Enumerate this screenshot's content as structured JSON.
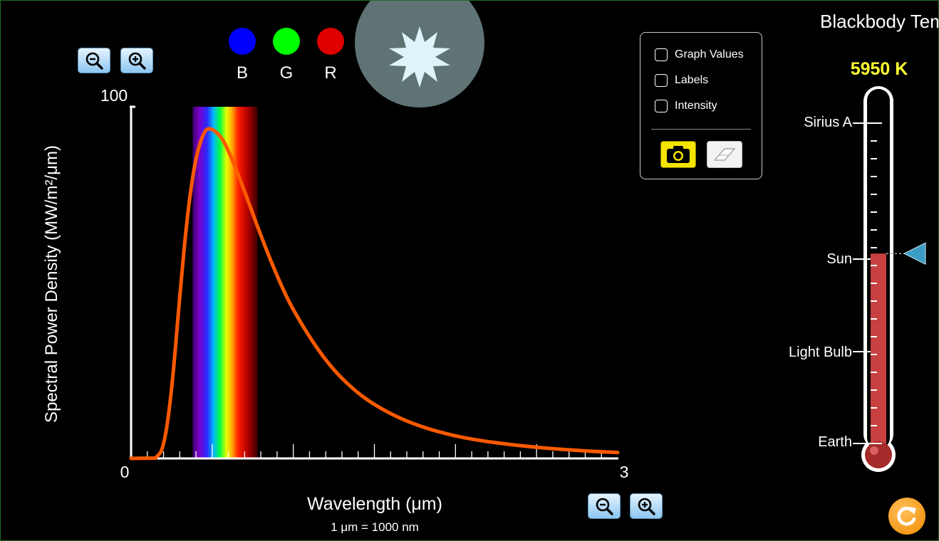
{
  "zoom": {
    "y_zoom_out_icon": "zoom-out-icon",
    "y_zoom_in_icon": "zoom-in-icon",
    "x_zoom_out_icon": "zoom-out-icon",
    "x_zoom_in_icon": "zoom-in-icon"
  },
  "rgb": [
    {
      "label": "B",
      "color": "#0000ff"
    },
    {
      "label": "G",
      "color": "#00ff00"
    },
    {
      "label": "R",
      "color": "#e00000"
    }
  ],
  "star": {
    "icon": "star-icon",
    "color": "#dcf4fa",
    "disc_color": "#5f7375"
  },
  "options": {
    "graph_values": {
      "label": "Graph Values",
      "checked": false
    },
    "labels": {
      "label": "Labels",
      "checked": false
    },
    "intensity": {
      "label": "Intensity",
      "checked": false
    },
    "camera_icon": "camera-icon",
    "eraser_icon": "eraser-icon"
  },
  "thermometer": {
    "title": "Blackbody Temperature",
    "value": "5950 K",
    "value_color": "#ffff33",
    "markers": [
      {
        "name": "Sirius A",
        "kelvin": 9940
      },
      {
        "name": "Sun",
        "kelvin": 5780
      },
      {
        "name": "Light Bulb",
        "kelvin": 3000
      },
      {
        "name": "Earth",
        "kelvin": 300
      }
    ],
    "fill_color": "#c84040",
    "indicator_color": "#3b9cc4"
  },
  "reset_icon": "reset-icon",
  "chart_data": {
    "type": "line",
    "xlabel": "Wavelength (μm)",
    "xnote": "1 μm  =  1000 nm",
    "ylabel": "Spectral Power Density (MW/m²/μm)",
    "x_tick_labels": [
      "0",
      "3"
    ],
    "y_tick_labels": [
      "100"
    ],
    "xlim": [
      0,
      3
    ],
    "ylim": [
      0,
      100
    ],
    "grid": false,
    "temperature_kelvin": 5950,
    "series": [
      {
        "color": "#ff5a00",
        "x": [
          0.15,
          0.2,
          0.25,
          0.3,
          0.35,
          0.4,
          0.45,
          0.487,
          0.55,
          0.6,
          0.7,
          0.8,
          0.9,
          1.0,
          1.2,
          1.4,
          1.6,
          1.8,
          2.0,
          2.2,
          2.5,
          2.8,
          3.0
        ],
        "y": [
          0.1,
          2.5,
          18.6,
          46.2,
          70.8,
          86.1,
          93.1,
          94.1,
          91.9,
          87.7,
          76.0,
          63.3,
          51.8,
          41.9,
          27.4,
          18.2,
          12.5,
          8.8,
          6.3,
          4.7,
          3.1,
          2.1,
          1.7
        ]
      }
    ],
    "visible_band": {
      "xmin": 0.38,
      "xmax": 0.78
    }
  }
}
